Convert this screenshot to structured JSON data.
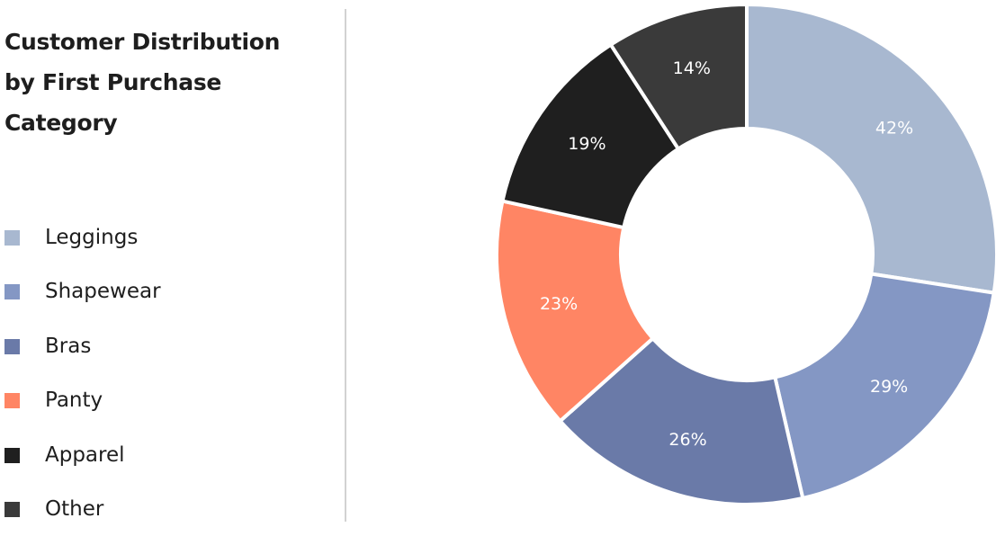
{
  "chart_data": {
    "type": "pie",
    "donut": true,
    "title": "Customer Distribution by First Purchase Category",
    "title_lines": [
      "Customer Distribution",
      "by First Purchase",
      "Category"
    ],
    "legend_placement": "left",
    "categories": [
      "Leggings",
      "Shapewear",
      "Bras",
      "Panty",
      "Apparel",
      "Other"
    ],
    "values": [
      42,
      29,
      26,
      23,
      19,
      14
    ],
    "labels": [
      "42%",
      "29%",
      "26%",
      "23%",
      "19%",
      "14%"
    ],
    "colors": [
      "#a8b8d0",
      "#8497c4",
      "#6a7aa8",
      "#ff8564",
      "#1f1f1f",
      "#3a3a3a"
    ]
  }
}
